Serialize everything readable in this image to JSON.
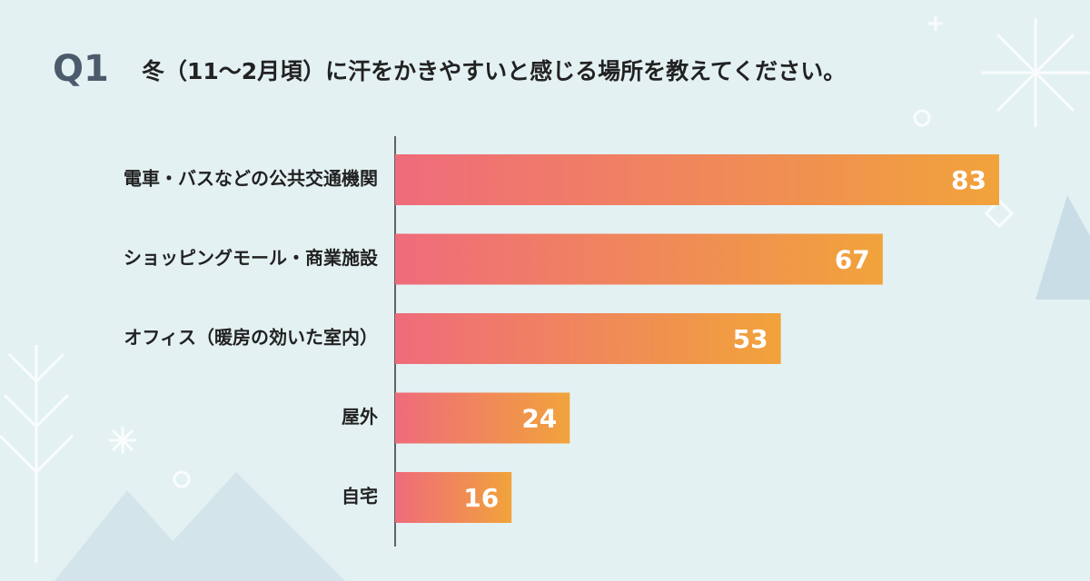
{
  "chart_data": {
    "type": "hbar",
    "question_label": "Q1",
    "title": "冬（11〜2月頃）に汗をかきやすいと感じる場所を教えてください。",
    "categories": [
      "電車・バスなどの公共交通機関",
      "ショッピングモール・商業施設",
      "オフィス（暖房の効いた室内）",
      "屋外",
      "自宅"
    ],
    "values": [
      83,
      67,
      53,
      24,
      16
    ],
    "colors": [
      "#ef6b7b",
      "#f1a33b"
    ]
  }
}
